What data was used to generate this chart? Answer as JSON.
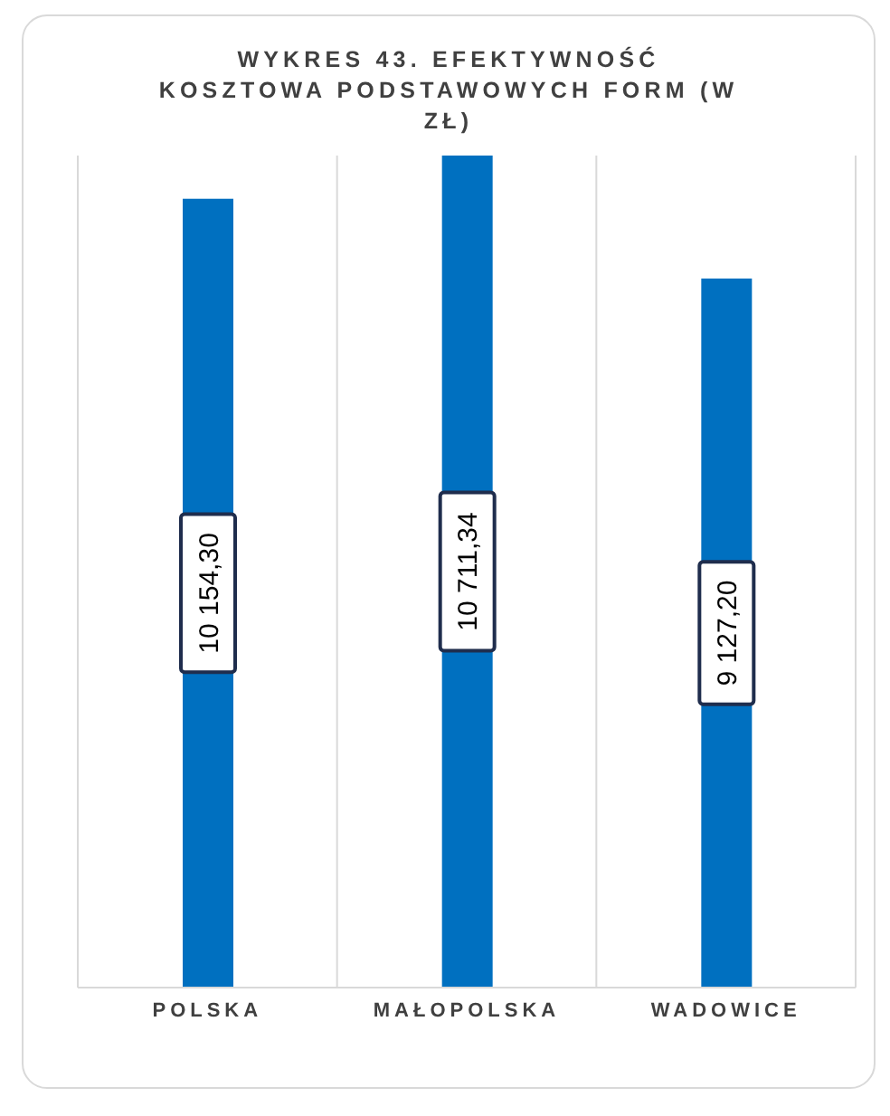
{
  "chart_data": {
    "type": "bar",
    "title": "WYKRES 43. EFEKTYWNOŚĆ KOSZTOWA PODSTAWOWYCH FORM (W ZŁ)",
    "categories": [
      "POLSKA",
      "MAŁOPOLSKA",
      "WADOWICE"
    ],
    "values": [
      10154.3,
      10711.34,
      9127.2
    ],
    "value_labels": [
      "10 154,30",
      "10 711,34",
      "9 127,20"
    ],
    "color": "#0070c0",
    "grid": "x"
  }
}
